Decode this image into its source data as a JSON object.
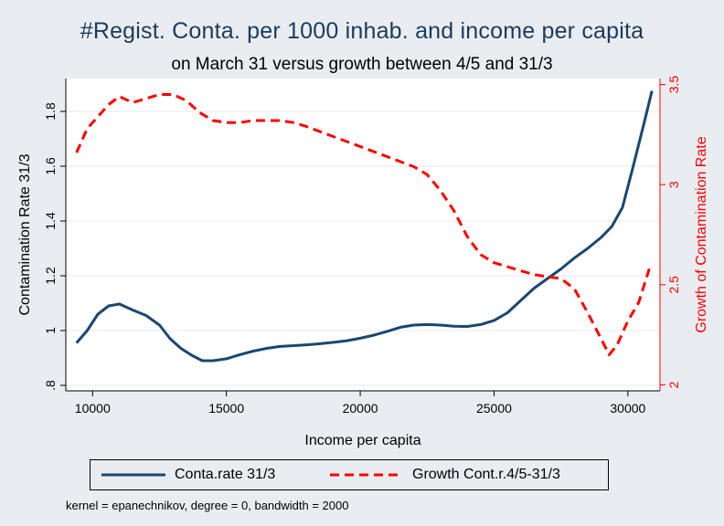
{
  "chart_data": {
    "type": "line",
    "title": "#Regist. Conta. per 1000 inhab. and income per capita",
    "subtitle": "on March 31 versus growth between 4/5 and 31/3",
    "xlabel": "Income per capita",
    "ylabel": "Contamination Rate 31/3",
    "y2label": "Growth of Contamination Rate",
    "note": "kernel = epanechnikov, degree = 0, bandwidth = 2000",
    "xlim": [
      9000,
      31200
    ],
    "ylim": [
      0.78,
      1.92
    ],
    "y2lim": [
      1.97,
      3.53
    ],
    "x_ticks": [
      10000,
      15000,
      20000,
      25000,
      30000
    ],
    "x_tick_labels": [
      "10000",
      "15000",
      "20000",
      "25000",
      "30000"
    ],
    "y_ticks": [
      0.8,
      1.0,
      1.2,
      1.4,
      1.6,
      1.8
    ],
    "y_tick_labels": [
      ".8",
      "1",
      "1.2",
      "1.4",
      "1.6",
      "1.8"
    ],
    "y2_ticks": [
      2.0,
      2.5,
      3.0,
      3.5
    ],
    "y2_tick_labels": [
      "2",
      "2.5",
      "3",
      "3.5"
    ],
    "grid": true,
    "legend_position": "bottom",
    "colors": {
      "series1": "#1a476f",
      "series2": "#ff0000",
      "background": "#e9edf1",
      "title": "#1b3a5c"
    },
    "series": [
      {
        "name": "Conta.rate 31/3",
        "axis": "left",
        "style": "solid",
        "x": [
          9400,
          9800,
          10200,
          10600,
          11000,
          11500,
          12000,
          12500,
          12900,
          13300,
          13700,
          14100,
          14500,
          15000,
          15500,
          16000,
          16500,
          17000,
          17500,
          18000,
          18500,
          19000,
          19500,
          20000,
          20500,
          21000,
          21500,
          22000,
          22500,
          23000,
          23500,
          24000,
          24500,
          25000,
          25500,
          26000,
          26500,
          27000,
          27500,
          28000,
          28500,
          29000,
          29400,
          29800,
          30200,
          30600,
          30900
        ],
        "y": [
          0.955,
          1.0,
          1.06,
          1.09,
          1.097,
          1.075,
          1.055,
          1.02,
          0.97,
          0.935,
          0.91,
          0.89,
          0.89,
          0.897,
          0.912,
          0.925,
          0.935,
          0.942,
          0.945,
          0.948,
          0.952,
          0.957,
          0.963,
          0.972,
          0.983,
          0.997,
          1.012,
          1.02,
          1.022,
          1.02,
          1.016,
          1.015,
          1.022,
          1.037,
          1.065,
          1.11,
          1.155,
          1.19,
          1.225,
          1.265,
          1.3,
          1.34,
          1.38,
          1.45,
          1.6,
          1.755,
          1.875
        ]
      },
      {
        "name": "Growth Cont.r.4/5-31/3",
        "axis": "right",
        "style": "dashed",
        "x": [
          9400,
          9800,
          10200,
          10600,
          11000,
          11500,
          12000,
          12500,
          13000,
          13500,
          14000,
          14500,
          15000,
          15500,
          16000,
          16500,
          17000,
          17500,
          18000,
          19000,
          20000,
          21000,
          22000,
          22500,
          23000,
          23500,
          24000,
          24500,
          25000,
          25500,
          26000,
          26500,
          27000,
          27500,
          28000,
          28500,
          29000,
          29300,
          29600,
          30000,
          30400,
          30800
        ],
        "y": [
          3.16,
          3.28,
          3.34,
          3.4,
          3.44,
          3.41,
          3.43,
          3.45,
          3.45,
          3.42,
          3.36,
          3.32,
          3.31,
          3.31,
          3.32,
          3.32,
          3.32,
          3.31,
          3.29,
          3.24,
          3.19,
          3.14,
          3.09,
          3.05,
          2.97,
          2.87,
          2.74,
          2.65,
          2.61,
          2.59,
          2.57,
          2.55,
          2.54,
          2.53,
          2.48,
          2.36,
          2.23,
          2.15,
          2.2,
          2.32,
          2.41,
          2.58
        ]
      }
    ]
  }
}
